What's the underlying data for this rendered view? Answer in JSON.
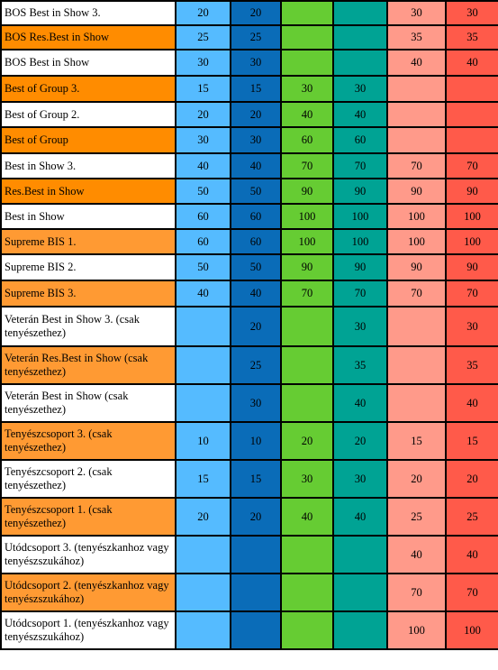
{
  "rows": [
    {
      "label": "BOS Best in Show 3.",
      "values": [
        "20",
        "20",
        "",
        "",
        "30",
        "30"
      ],
      "style": "white"
    },
    {
      "label": "BOS Res.Best in Show",
      "values": [
        "25",
        "25",
        "",
        "",
        "35",
        "35"
      ],
      "style": "orange"
    },
    {
      "label": "BOS Best in Show",
      "values": [
        "30",
        "30",
        "",
        "",
        "40",
        "40"
      ],
      "style": "white"
    },
    {
      "label": "Best of Group 3.",
      "values": [
        "15",
        "15",
        "30",
        "30",
        "",
        ""
      ],
      "style": "orange"
    },
    {
      "label": "Best of Group 2.",
      "values": [
        "20",
        "20",
        "40",
        "40",
        "",
        ""
      ],
      "style": "white"
    },
    {
      "label": "Best of Group",
      "values": [
        "30",
        "30",
        "60",
        "60",
        "",
        ""
      ],
      "style": "orange"
    },
    {
      "label": "Best in Show 3.",
      "values": [
        "40",
        "40",
        "70",
        "70",
        "70",
        "70"
      ],
      "style": "white"
    },
    {
      "label": "Res.Best in Show",
      "values": [
        "50",
        "50",
        "90",
        "90",
        "90",
        "90"
      ],
      "style": "orange"
    },
    {
      "label": "Best in Show",
      "values": [
        "60",
        "60",
        "100",
        "100",
        "100",
        "100"
      ],
      "style": "white"
    },
    {
      "label": "Supreme BIS 1.",
      "values": [
        "60",
        "60",
        "100",
        "100",
        "100",
        "100"
      ],
      "style": "lightorange"
    },
    {
      "label": "Supreme BIS 2.",
      "values": [
        "50",
        "50",
        "90",
        "90",
        "90",
        "90"
      ],
      "style": "white"
    },
    {
      "label": "Supreme BIS 3.",
      "values": [
        "40",
        "40",
        "70",
        "70",
        "70",
        "70"
      ],
      "style": "lightorange"
    },
    {
      "label": "Veterán Best in Show 3. (csak tenyészethez)",
      "values": [
        "",
        "20",
        "",
        "30",
        "",
        "30"
      ],
      "style": "white"
    },
    {
      "label": "Veterán Res.Best in Show (csak tenyészethez)",
      "values": [
        "",
        "25",
        "",
        "35",
        "",
        "35"
      ],
      "style": "lightorange"
    },
    {
      "label": "Veterán Best in Show  (csak tenyészethez)",
      "values": [
        "",
        "30",
        "",
        "40",
        "",
        "40"
      ],
      "style": "white"
    },
    {
      "label": "Tenyészcsoport 3. (csak tenyészethez)",
      "values": [
        "10",
        "10",
        "20",
        "20",
        "15",
        "15"
      ],
      "style": "lightorange"
    },
    {
      "label": "Tenyészcsoport 2. (csak tenyészethez)",
      "values": [
        "15",
        "15",
        "30",
        "30",
        "20",
        "20"
      ],
      "style": "white"
    },
    {
      "label": "Tenyészcsoport 1. (csak tenyészethez)",
      "values": [
        "20",
        "20",
        "40",
        "40",
        "25",
        "25"
      ],
      "style": "lightorange"
    },
    {
      "label": "Utódcsoport 3. (tenyészkanhoz vagy tenyészszukához)",
      "values": [
        "",
        "",
        "",
        "",
        "40",
        "40"
      ],
      "style": "white"
    },
    {
      "label": "Utódcsoport 2. (tenyészkanhoz vagy tenyészszukához)",
      "values": [
        "",
        "",
        "",
        "",
        "70",
        "70"
      ],
      "style": "lightorange"
    },
    {
      "label": "Utódcsoport 1. (tenyészkanhoz vagy tenyészszukához)",
      "values": [
        "",
        "",
        "",
        "",
        "100",
        "100"
      ],
      "style": "white"
    }
  ],
  "colors": {
    "col1": "#55bbff",
    "col2": "#0a6cb8",
    "col3": "#66cc33",
    "col4": "#00a394",
    "col5": "#ff9a8a",
    "col6": "#ff5a4a",
    "label_orange": "#ff8c00",
    "label_lightorange": "#ff9a33"
  }
}
